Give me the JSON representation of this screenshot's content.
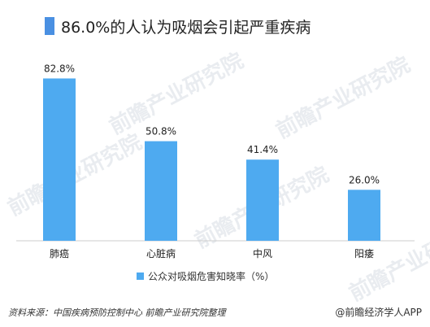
{
  "title": "86.0%的人认为吸烟会引起严重疾病",
  "colors": {
    "title_marker": "#4a90e2",
    "bar": "#4eaaf0",
    "axis": "#cccccc"
  },
  "chart_data": {
    "type": "bar",
    "categories": [
      "肺癌",
      "心脏病",
      "中风",
      "阳痿"
    ],
    "series": [
      {
        "name": "公众对吸烟危害知晓率（%）",
        "values": [
          82.8,
          50.8,
          41.4,
          26.0
        ]
      }
    ],
    "data_labels": [
      "82.8%",
      "50.8%",
      "41.4%",
      "26.0%"
    ],
    "ylim": [
      0,
      100
    ],
    "grid": false,
    "legend_position": "bottom"
  },
  "legend": {
    "label": "公众对吸烟危害知晓率（%）"
  },
  "footer": {
    "source": "资料来源：中国疾病预防控制中心 前瞻产业研究院整理",
    "brand": "@前瞻经济学人APP"
  },
  "watermark": {
    "text": "前瞻产业研究院"
  }
}
